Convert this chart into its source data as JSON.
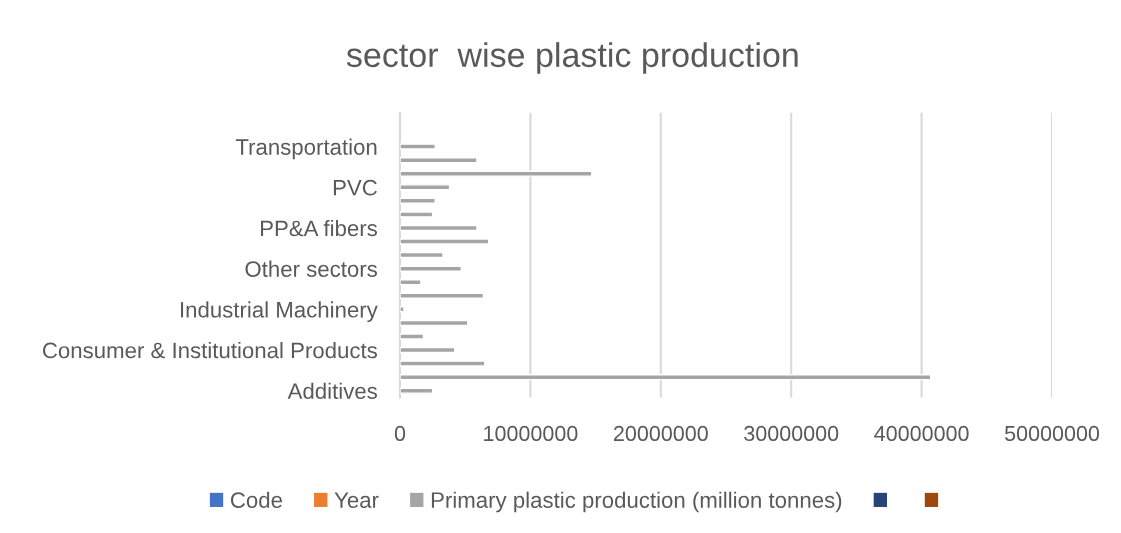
{
  "chart_data": {
    "type": "bar",
    "orientation": "horizontal",
    "title": "sector  wise plastic production",
    "categories": [
      null,
      null,
      "Transportation",
      null,
      null,
      "PVC",
      null,
      null,
      "PP&A fibers",
      null,
      null,
      "Other sectors",
      null,
      null,
      "Industrial Machinery",
      null,
      null,
      "Consumer & Institutional Products",
      null,
      null,
      "Additives"
    ],
    "series": [
      {
        "name": "Code",
        "color": "#4472c4",
        "values": [
          null,
          null,
          null,
          null,
          null,
          null,
          null,
          null,
          null,
          null,
          null,
          null,
          null,
          null,
          null,
          null,
          null,
          null,
          null,
          null,
          null
        ]
      },
      {
        "name": "Year",
        "color": "#ed7d31",
        "values": [
          null,
          null,
          null,
          null,
          null,
          null,
          null,
          null,
          null,
          null,
          null,
          null,
          null,
          null,
          null,
          null,
          null,
          null,
          null,
          null,
          null
        ]
      },
      {
        "name": "Primary plastic production (million tonnes)",
        "color": "#a5a5a5",
        "values": [
          null,
          null,
          2700000,
          5900000,
          14700000,
          3800000,
          2700000,
          2500000,
          5900000,
          6800000,
          3300000,
          4700000,
          1600000,
          6400000,
          300000,
          5200000,
          1800000,
          4200000,
          6500000,
          40700000,
          2500000
        ]
      },
      {
        "color": "#264478",
        "values": [
          null,
          null,
          null,
          null,
          null,
          null,
          null,
          null,
          null,
          null,
          null,
          null,
          null,
          null,
          null,
          null,
          null,
          null,
          null,
          null,
          null
        ]
      },
      {
        "color": "#9e480e",
        "values": [
          null,
          null,
          null,
          null,
          null,
          null,
          null,
          null,
          null,
          null,
          null,
          null,
          null,
          null,
          null,
          null,
          null,
          null,
          null,
          null,
          null
        ]
      }
    ],
    "xlim": [
      0,
      50000000
    ],
    "xticks": [
      0,
      10000000,
      20000000,
      30000000,
      40000000,
      50000000
    ],
    "grid": "x",
    "legend": "bottom"
  }
}
